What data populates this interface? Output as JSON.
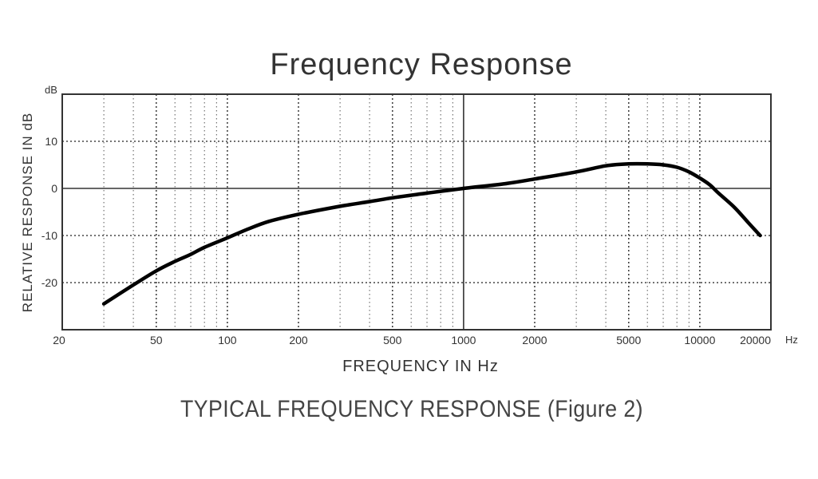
{
  "chart_data": {
    "type": "line",
    "title": "Frequency Response",
    "xlabel": "FREQUENCY IN Hz",
    "ylabel": "RELATIVE RESPONSE IN dB",
    "x_unit": "Hz",
    "y_unit": "dB",
    "x_scale": "log",
    "xlim": [
      20,
      20000
    ],
    "ylim": [
      -30,
      20
    ],
    "x_ticks": [
      20,
      50,
      100,
      200,
      500,
      1000,
      2000,
      5000,
      10000,
      20000
    ],
    "x_tick_labels": [
      "20",
      "50",
      "100",
      "200",
      "500",
      "1000",
      "2000",
      "5000",
      "10000",
      "20000"
    ],
    "y_ticks": [
      10,
      0,
      -10,
      -20
    ],
    "y_tick_labels": [
      "10",
      "0",
      "-10",
      "-20"
    ],
    "grid": true,
    "reference_lines": {
      "x": [
        1000
      ],
      "y": [
        0
      ]
    },
    "series": [
      {
        "x": [
          30,
          40,
          50,
          60,
          70,
          80,
          100,
          120,
          150,
          200,
          300,
          400,
          500,
          700,
          1000,
          1500,
          2000,
          3000,
          4000,
          5000,
          6000,
          7000,
          8000,
          9000,
          10000,
          11000,
          12000,
          14000,
          16000,
          18000
        ],
        "y": [
          -24.5,
          -20.5,
          -17.5,
          -15.5,
          -14,
          -12.5,
          -10.5,
          -8.8,
          -7,
          -5.5,
          -3.8,
          -2.8,
          -2,
          -1,
          0,
          1,
          2,
          3.5,
          4.8,
          5.2,
          5.2,
          5,
          4.5,
          3.5,
          2.2,
          0.8,
          -1,
          -4,
          -7.2,
          -10
        ]
      }
    ],
    "caption": "TYPICAL FREQUENCY RESPONSE (Figure 2)"
  }
}
